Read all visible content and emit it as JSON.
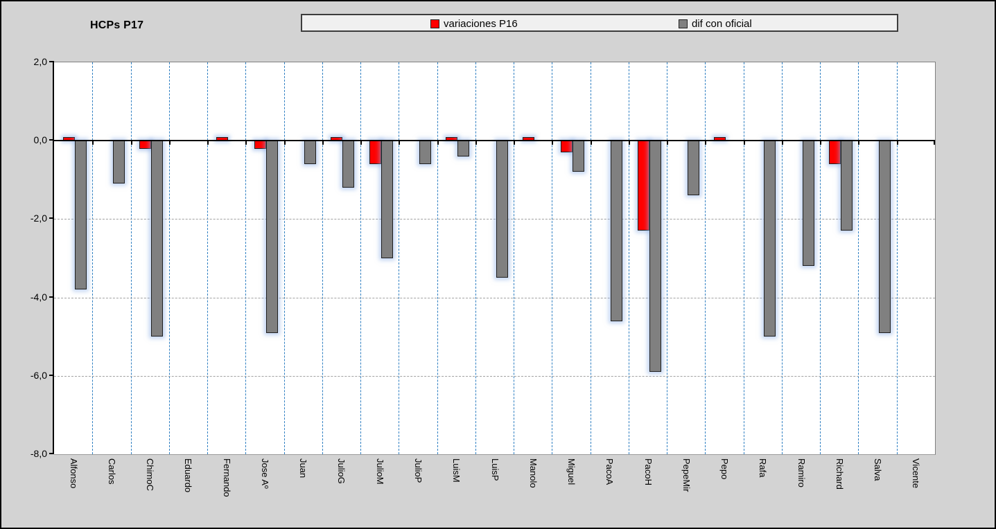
{
  "title": "HCPs P17",
  "legend": {
    "items": [
      {
        "label": "variaciones P16",
        "color": "#ff0000"
      },
      {
        "label": "dif con oficial",
        "color": "#808080"
      }
    ]
  },
  "y_axis": {
    "tick_labels": [
      "2,0",
      "0,0",
      "-2,0",
      "-4,0",
      "-6,0",
      "-8,0"
    ],
    "tick_values": [
      2,
      0,
      -2,
      -4,
      -6,
      -8
    ]
  },
  "chart_data": {
    "type": "bar",
    "title": "HCPs P17",
    "categories": [
      "Alfonso",
      "Carlos",
      "ChimoC",
      "Eduardo",
      "Fernando",
      "Jose Aº",
      "Juan",
      "JulioG",
      "JulioM",
      "JulioP",
      "LuisM",
      "LuisP",
      "Manolo",
      "Miguel",
      "PacoA",
      "PacoH",
      "PepeMir",
      "Pepo",
      "Rafa",
      "Ramiro",
      "Richard",
      "Salva",
      "Vicente"
    ],
    "series": [
      {
        "name": "variaciones P16",
        "color": "#ff0000",
        "values": [
          0.1,
          0,
          -0.2,
          0,
          0.1,
          -0.2,
          0,
          0.1,
          -0.6,
          0,
          0.1,
          0,
          0.1,
          -0.3,
          0,
          -2.3,
          0,
          0.1,
          0,
          0,
          -0.6,
          0,
          0
        ]
      },
      {
        "name": "dif con oficial",
        "color": "#808080",
        "values": [
          -3.8,
          -1.1,
          -5.0,
          0,
          0,
          -4.9,
          -0.6,
          -1.2,
          -3.0,
          -0.6,
          -0.4,
          -3.5,
          0,
          -0.8,
          -4.6,
          -5.9,
          -1.4,
          0,
          -5.0,
          -3.2,
          -2.3,
          -4.9,
          0
        ]
      }
    ],
    "ylim": [
      -8,
      2
    ],
    "ytick_step": 2,
    "xlabel": "",
    "ylabel": "",
    "legend_position": "top",
    "grid": {
      "horizontal": "dashed-gray",
      "vertical": "dashed-blue-category-separators"
    }
  },
  "colors": {
    "background": "#d3d3d3",
    "plot_background": "#ffffff",
    "vertical_gridline": "#2e7fc2",
    "horizontal_gridline": "#a0a0a0",
    "axis": "#000000",
    "legend_background": "#f0f0f0"
  }
}
